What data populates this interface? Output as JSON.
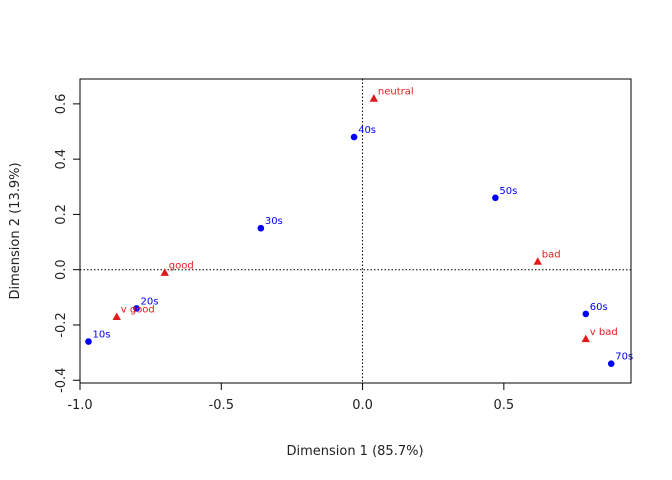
{
  "chart_data": {
    "type": "scatter",
    "xlabel": "Dimension 1 (85.7%)",
    "ylabel": "Dimension 2 (13.9%)",
    "xlim": [
      -1.0,
      0.95
    ],
    "ylim": [
      -0.41,
      0.69
    ],
    "xticks": [
      -1.0,
      -0.5,
      0.0,
      0.5
    ],
    "xtick_labels": [
      "-1.0",
      "-0.5",
      "0.0",
      "0.5"
    ],
    "yticks": [
      -0.4,
      -0.2,
      0.0,
      0.2,
      0.4,
      0.6
    ],
    "ytick_labels": [
      "-0.4",
      "-0.2",
      "0.0",
      "0.2",
      "0.4",
      "0.6"
    ],
    "reference_lines": {
      "x": 0,
      "y": 0,
      "style": "dotted"
    },
    "grid": false,
    "series": [
      {
        "marker": "circle",
        "color": "#0000ff",
        "points": [
          {
            "label": "10s",
            "x": -0.97,
            "y": -0.26
          },
          {
            "label": "20s",
            "x": -0.8,
            "y": -0.14
          },
          {
            "label": "30s",
            "x": -0.36,
            "y": 0.15
          },
          {
            "label": "40s",
            "x": -0.03,
            "y": 0.48
          },
          {
            "label": "50s",
            "x": 0.47,
            "y": 0.26
          },
          {
            "label": "60s",
            "x": 0.79,
            "y": -0.16
          },
          {
            "label": "70s",
            "x": 0.88,
            "y": -0.34
          }
        ]
      },
      {
        "marker": "triangle",
        "color": "#e31a1c",
        "points": [
          {
            "label": "neutral",
            "x": 0.04,
            "y": 0.62
          },
          {
            "label": "good",
            "x": -0.7,
            "y": -0.01
          },
          {
            "label": "v good",
            "x": -0.87,
            "y": -0.17
          },
          {
            "label": "bad",
            "x": 0.62,
            "y": 0.03
          },
          {
            "label": "v bad",
            "x": 0.79,
            "y": -0.25
          }
        ]
      }
    ]
  }
}
